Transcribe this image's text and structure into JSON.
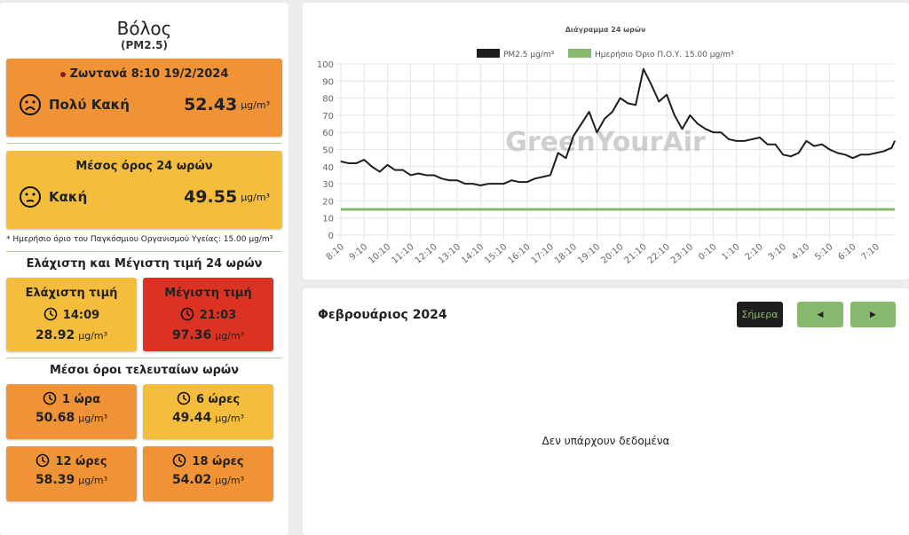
{
  "city": "Βόλος",
  "pollutant": "(PM2.5)",
  "unit": "μg/m³",
  "live": {
    "label": "Ζωντανά 8:10 19/2/2024",
    "quality": "Πολύ Κακή",
    "value": "52.43"
  },
  "avg24": {
    "label": "Μέσος όρος 24 ωρών",
    "quality": "Κακή",
    "value": "49.55"
  },
  "note": "* Ημερήσιο όριο του Παγκόσμιου Οργανισμού Υγείας: 15.00 μg/m³",
  "minmax": {
    "title": "Ελάχιστη και Μέγιστη τιμή 24 ωρών",
    "min": {
      "label": "Ελάχιστη τιμή",
      "time": "14:09",
      "value": "28.92"
    },
    "max": {
      "label": "Μέγιστη τιμή",
      "time": "21:03",
      "value": "97.36"
    }
  },
  "recent": {
    "title": "Μέσοι όροι τελευταίων ωρών",
    "items": [
      {
        "label": "1 ώρα",
        "value": "50.68"
      },
      {
        "label": "6 ώρες",
        "value": "49.44"
      },
      {
        "label": "12 ώρες",
        "value": "58.39"
      },
      {
        "label": "18 ώρες",
        "value": "54.02"
      }
    ]
  },
  "calendar": {
    "month": "Φεβρουάριος 2024",
    "today": "Σήμερα",
    "prev": "◀",
    "next": "▶",
    "empty": "Δεν υπάρχουν δεδομένα"
  },
  "colors": {
    "orange": "#f09236",
    "yellow": "#f4bd3c",
    "red": "#dc3223",
    "green": "#86b86e",
    "line": "#1e1e1e"
  },
  "chart_data": {
    "type": "line",
    "title": "Διάγραμμα 24 ωρών",
    "watermark": "GreenYourAir",
    "ylim": [
      0,
      100
    ],
    "yticks": [
      0,
      10,
      20,
      30,
      40,
      50,
      60,
      70,
      80,
      90,
      100
    ],
    "xticks": [
      "8:10",
      "9:10",
      "10:10",
      "11:10",
      "12:10",
      "13:10",
      "14:10",
      "15:10",
      "16:10",
      "17:10",
      "18:10",
      "19:10",
      "20:10",
      "21:10",
      "22:10",
      "23:10",
      "0:10",
      "1:10",
      "2:10",
      "3:10",
      "4:10",
      "5:10",
      "6:10",
      "7:10"
    ],
    "x_step_minutes": 20,
    "series": [
      {
        "name": "PM2.5 μg/m³",
        "color": "#1e1e1e",
        "values": [
          43,
          42,
          42,
          44,
          40,
          37,
          41,
          38,
          38,
          35,
          36,
          35,
          35,
          33,
          32,
          32,
          30,
          30,
          29,
          30,
          30,
          30,
          32,
          31,
          31,
          33,
          34,
          35,
          48,
          45,
          58,
          65,
          72,
          60,
          68,
          72,
          80,
          77,
          76,
          97,
          88,
          78,
          82,
          70,
          62,
          70,
          65,
          62,
          60,
          60,
          56,
          55,
          55,
          56,
          57,
          53,
          53,
          47,
          46,
          48,
          55,
          52,
          53,
          50,
          48,
          47,
          45,
          47,
          47,
          48,
          49,
          51,
          55
        ]
      },
      {
        "name": "Ημερήσιο Όριο Π.Ο.Υ. 15.00 μg/m³",
        "color": "#86b86e",
        "constant": 15
      }
    ]
  }
}
